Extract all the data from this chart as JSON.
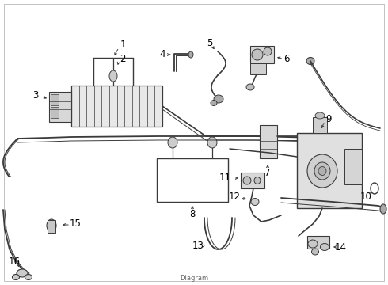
{
  "bg_color": "#ffffff",
  "line_color": "#3a3a3a",
  "text_color": "#000000",
  "figsize": [
    4.9,
    3.6
  ],
  "dpi": 100,
  "border_color": "#cccccc"
}
